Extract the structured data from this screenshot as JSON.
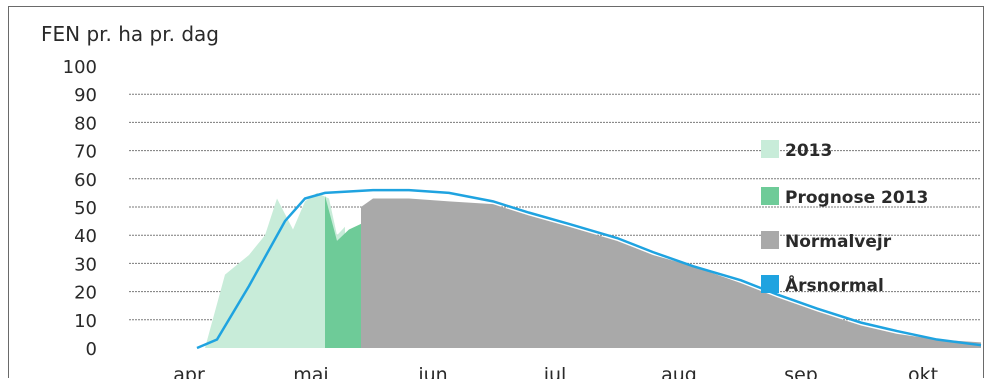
{
  "chart_data": {
    "type": "area",
    "title": "FEN pr. ha pr. dag",
    "ylim": [
      0,
      100
    ],
    "yticks": [
      "100",
      "90",
      "80",
      "70",
      "60",
      "50",
      "40",
      "30",
      "20",
      "10",
      "0"
    ],
    "month_labels": [
      "apr",
      "maj",
      "jun",
      "jul",
      "aug",
      "sep",
      "okt"
    ],
    "grid": true,
    "legend_position": "right",
    "series": [
      {
        "name": "2013",
        "color": "#c8ecd9",
        "x": [
          "04-20",
          "04-25",
          "05-01",
          "05-05",
          "05-08",
          "05-12",
          "05-15",
          "05-18",
          "05-21",
          "05-23",
          "05-25"
        ],
        "values": [
          0,
          26,
          33,
          40,
          53,
          42,
          52,
          55,
          53,
          40,
          43
        ]
      },
      {
        "name": "Prognose 2013",
        "color": "#6ecb98",
        "x": [
          "05-20",
          "05-23",
          "05-26",
          "05-29"
        ],
        "values": [
          54,
          38,
          42,
          44
        ]
      },
      {
        "name": "Normalvejr",
        "color": "#a9a9a9",
        "x": [
          "05-29",
          "06-01",
          "06-05",
          "06-10",
          "06-20",
          "07-01",
          "07-10",
          "07-20",
          "08-01",
          "08-10",
          "08-20",
          "09-01",
          "09-10",
          "09-20",
          "10-01",
          "10-10",
          "10-20",
          "10-31"
        ],
        "values": [
          50,
          53,
          53,
          53,
          52,
          51,
          47,
          43,
          38,
          33,
          29,
          23,
          18,
          13,
          8,
          5,
          3,
          2
        ]
      },
      {
        "name": "Årsnormal",
        "color": "#1fa3e0",
        "x": [
          "04-18",
          "04-23",
          "05-01",
          "05-10",
          "05-15",
          "05-20",
          "06-01",
          "06-10",
          "06-20",
          "07-01",
          "07-10",
          "07-20",
          "08-01",
          "08-10",
          "08-20",
          "09-01",
          "09-10",
          "09-20",
          "10-01",
          "10-10",
          "10-20",
          "10-31"
        ],
        "values": [
          0,
          3,
          22,
          45,
          53,
          55,
          56,
          56,
          55,
          52,
          48,
          44,
          39,
          34,
          29,
          24,
          19,
          14,
          9,
          6,
          3,
          1
        ]
      }
    ]
  }
}
